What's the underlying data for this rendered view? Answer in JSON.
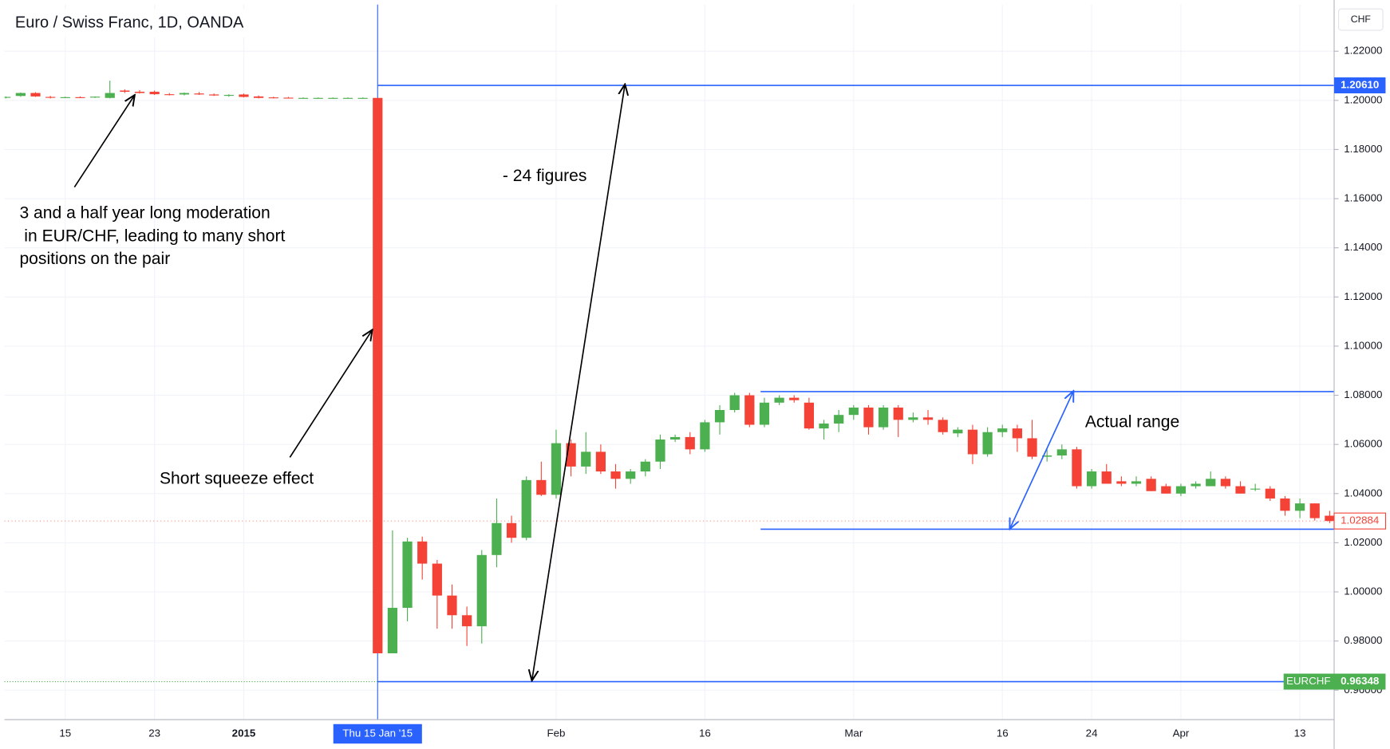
{
  "chart_data": {
    "type": "candlestick",
    "title": "Euro / Swiss Franc, 1D, OANDA",
    "currency": "CHF",
    "symbol": "EURCHF",
    "crosshair_label": "Thu 15 Jan '15",
    "up_color": "#4caf50",
    "down_color": "#f44336",
    "line_color": "#2962ff",
    "grid": true,
    "categories": [
      null,
      null,
      null,
      null,
      "15",
      null,
      null,
      null,
      null,
      null,
      "23",
      null,
      null,
      null,
      null,
      null,
      "2015",
      null,
      null,
      null,
      null,
      null,
      null,
      null,
      null,
      null,
      null,
      null,
      null,
      null,
      null,
      null,
      null,
      null,
      null,
      null,
      null,
      "Feb",
      null,
      null,
      null,
      null,
      null,
      null,
      null,
      null,
      null,
      "16",
      null,
      null,
      null,
      null,
      null,
      null,
      null,
      null,
      null,
      "Mar",
      null,
      null,
      null,
      null,
      null,
      null,
      null,
      null,
      null,
      "16",
      null,
      null,
      null,
      null,
      null,
      "24",
      null,
      null,
      null,
      null,
      null,
      "Apr",
      null,
      null,
      null,
      null,
      null,
      null,
      null,
      "13",
      null,
      null
    ],
    "open": [
      1.2012,
      1.2018,
      1.203,
      1.2014,
      1.2012,
      1.2013,
      1.2012,
      1.201,
      1.204,
      1.2035,
      1.2035,
      1.2025,
      1.2024,
      1.2028,
      1.2024,
      1.202,
      1.2024,
      1.2016,
      1.2012,
      1.2011,
      1.201,
      1.201,
      1.201,
      1.201,
      1.201,
      1.201,
      0.975,
      0.9935,
      1.0205,
      1.0115,
      0.9985,
      0.9905,
      0.986,
      1.015,
      1.028,
      1.022,
      1.0455,
      1.0395,
      1.0605,
      1.051,
      1.057,
      1.049,
      1.046,
      1.049,
      1.053,
      1.062,
      1.063,
      1.058,
      1.069,
      1.074,
      1.08,
      1.068,
      1.077,
      1.079,
      1.077,
      1.0665,
      1.0685,
      1.072,
      1.075,
      1.067,
      1.075,
      1.07,
      1.071,
      1.07,
      1.0645,
      1.066,
      1.056,
      1.065,
      1.0665,
      1.0625,
      1.055,
      1.0555,
      1.058,
      1.043,
      1.049,
      1.045,
      1.044,
      1.046,
      1.043,
      1.04,
      1.043,
      1.043,
      1.046,
      1.043,
      1.042,
      1.042,
      1.038,
      1.033,
      1.036,
      1.031
    ],
    "high": [
      1.2016,
      1.2032,
      1.2033,
      1.2018,
      1.2015,
      1.2016,
      1.2016,
      1.208,
      1.2045,
      1.2042,
      1.204,
      1.203,
      1.2032,
      1.2034,
      1.2028,
      1.2025,
      1.2028,
      1.202,
      1.2015,
      1.2014,
      1.2012,
      1.2012,
      1.2012,
      1.2012,
      1.2012,
      1.201,
      1.025,
      1.022,
      1.0225,
      1.013,
      1.003,
      0.994,
      1.017,
      1.038,
      1.031,
      1.047,
      1.053,
      1.066,
      1.062,
      1.065,
      1.06,
      1.052,
      1.05,
      1.054,
      1.064,
      1.064,
      1.065,
      1.07,
      1.076,
      1.081,
      1.081,
      1.079,
      1.08,
      1.08,
      1.079,
      1.07,
      1.074,
      1.076,
      1.076,
      1.076,
      1.076,
      1.073,
      1.074,
      1.071,
      1.067,
      1.068,
      1.067,
      1.068,
      1.068,
      1.07,
      1.058,
      1.06,
      1.059,
      1.05,
      1.052,
      1.047,
      1.047,
      1.047,
      1.044,
      1.044,
      1.045,
      1.049,
      1.047,
      1.045,
      1.044,
      1.043,
      1.039,
      1.038,
      1.036,
      1.033
    ],
    "low": [
      1.2008,
      1.2015,
      1.2014,
      1.2008,
      1.2009,
      1.201,
      1.201,
      1.2008,
      1.203,
      1.2028,
      1.2022,
      1.202,
      1.202,
      1.2022,
      1.2018,
      1.2015,
      1.2012,
      1.2008,
      1.2008,
      1.2008,
      1.2008,
      1.2008,
      1.2008,
      1.2008,
      1.2008,
      0.975,
      0.975,
      0.988,
      1.005,
      0.985,
      0.985,
      0.978,
      0.979,
      1.01,
      1.02,
      1.021,
      1.039,
      1.038,
      1.047,
      1.048,
      1.048,
      1.042,
      1.044,
      1.047,
      1.05,
      1.061,
      1.056,
      1.057,
      1.064,
      1.073,
      1.067,
      1.067,
      1.076,
      1.077,
      1.066,
      1.062,
      1.065,
      1.07,
      1.064,
      1.066,
      1.063,
      1.069,
      1.068,
      1.064,
      1.063,
      1.052,
      1.055,
      1.063,
      1.057,
      1.054,
      1.053,
      1.054,
      1.042,
      1.042,
      1.044,
      1.043,
      1.043,
      1.041,
      1.04,
      1.039,
      1.042,
      1.043,
      1.042,
      1.04,
      1.041,
      1.037,
      1.031,
      1.03,
      1.029,
      1.028
    ],
    "close": [
      1.2014,
      1.203,
      1.2016,
      1.2012,
      1.2013,
      1.2012,
      1.2015,
      1.203,
      1.2035,
      1.203,
      1.2025,
      1.2022,
      1.203,
      1.2024,
      1.202,
      1.2022,
      1.2014,
      1.201,
      1.2011,
      1.201,
      1.201,
      1.201,
      1.201,
      1.201,
      1.201,
      0.975,
      0.9935,
      1.0205,
      1.0115,
      0.9985,
      0.9905,
      0.986,
      1.015,
      1.028,
      1.022,
      1.0455,
      1.0395,
      1.0605,
      1.051,
      1.057,
      1.049,
      1.046,
      1.049,
      1.053,
      1.062,
      1.063,
      1.058,
      1.069,
      1.074,
      1.08,
      1.068,
      1.077,
      1.079,
      1.078,
      1.0665,
      1.0685,
      1.072,
      1.075,
      1.067,
      1.075,
      1.07,
      1.071,
      1.07,
      1.065,
      1.066,
      1.056,
      1.065,
      1.0665,
      1.0625,
      1.055,
      1.0555,
      1.058,
      1.043,
      1.049,
      1.044,
      1.044,
      1.045,
      1.041,
      1.04,
      1.043,
      1.044,
      1.046,
      1.043,
      1.04,
      1.042,
      1.038,
      1.033,
      1.036,
      1.03,
      1.02884
    ],
    "ylim": [
      0.948,
      1.239
    ],
    "yticks": [
      {
        "value": 0.96,
        "label": "0.96000"
      },
      {
        "value": 0.98,
        "label": "0.98000"
      },
      {
        "value": 1.0,
        "label": "1.00000"
      },
      {
        "value": 1.02,
        "label": "1.02000"
      },
      {
        "value": 1.04,
        "label": "1.04000"
      },
      {
        "value": 1.06,
        "label": "1.06000"
      },
      {
        "value": 1.08,
        "label": "1.08000"
      },
      {
        "value": 1.1,
        "label": "1.10000"
      },
      {
        "value": 1.12,
        "label": "1.12000"
      },
      {
        "value": 1.14,
        "label": "1.14000"
      },
      {
        "value": 1.16,
        "label": "1.16000"
      },
      {
        "value": 1.18,
        "label": "1.18000"
      },
      {
        "value": 1.2,
        "label": "1.20000"
      },
      {
        "value": 1.22,
        "label": "1.22000"
      }
    ],
    "hlines": [
      {
        "value": 1.2061,
        "label": "1.20610"
      },
      {
        "value": 0.96348
      },
      {
        "value": 1.0815
      },
      {
        "value": 1.0255
      }
    ],
    "annotations": [
      "3 and a half year long moderation",
      " in EUR/CHF, leading to many short",
      "positions on the pair",
      "Short squeeze effect",
      "- 24 figures",
      "Actual range"
    ]
  }
}
